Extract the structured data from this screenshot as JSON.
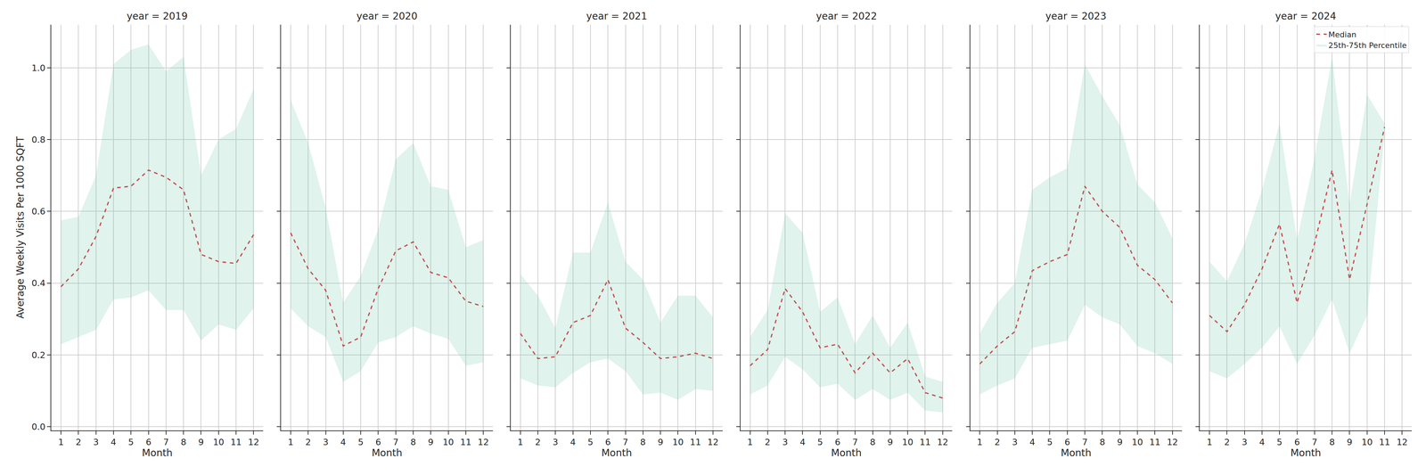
{
  "chart_data": [
    {
      "type": "line",
      "title": "year = 2019",
      "x_label": "Month",
      "y_label": "Average Weekly Visits Per 1000 SQFT",
      "x": [
        1,
        2,
        3,
        4,
        5,
        6,
        7,
        8,
        9,
        10,
        11,
        12
      ],
      "xlim": [
        0.45,
        12.55
      ],
      "xticks": [
        1,
        2,
        3,
        4,
        5,
        6,
        7,
        8,
        9,
        10,
        11,
        12
      ],
      "ylim": [
        -0.01,
        1.12
      ],
      "yticks": [
        {
          "value": 0,
          "label": "0.0"
        },
        0.2,
        0.4,
        0.6,
        0.8,
        {
          "value": 1,
          "label": "1.0"
        }
      ],
      "grid": true,
      "series": [
        {
          "name": "25th-75th Percentile",
          "type": "area",
          "color": "#66c2a5",
          "lower": [
            0.23,
            0.25,
            0.27,
            0.355,
            0.36,
            0.38,
            0.325,
            0.325,
            0.24,
            0.285,
            0.27,
            0.33
          ],
          "upper": [
            0.575,
            0.585,
            0.7,
            1.01,
            1.05,
            1.065,
            0.99,
            1.03,
            0.7,
            0.8,
            0.83,
            0.94
          ]
        },
        {
          "name": "Median",
          "type": "line",
          "color": "#c44e52",
          "line_style": "dashed",
          "values": [
            0.39,
            0.44,
            0.53,
            0.665,
            0.67,
            0.715,
            0.695,
            0.66,
            0.48,
            0.46,
            0.455,
            0.535
          ]
        }
      ]
    },
    {
      "type": "line",
      "title": "year = 2020",
      "x_label": "Month",
      "tick_labels": "x",
      "x": [
        1,
        2,
        3,
        4,
        5,
        6,
        7,
        8,
        9,
        10,
        11,
        12
      ],
      "xlim": [
        0.45,
        12.55
      ],
      "xticks": [
        1,
        2,
        3,
        4,
        5,
        6,
        7,
        8,
        9,
        10,
        11,
        12
      ],
      "ylim": [
        -0.01,
        1.12
      ],
      "yticks": [
        {
          "value": 0,
          "label": "0.0"
        },
        0.2,
        0.4,
        0.6,
        0.8,
        {
          "value": 1,
          "label": "1.0"
        }
      ],
      "grid": true,
      "series": [
        {
          "name": "25th-75th Percentile",
          "type": "area",
          "color": "#66c2a5",
          "lower": [
            0.33,
            0.28,
            0.25,
            0.125,
            0.155,
            0.235,
            0.25,
            0.28,
            0.26,
            0.245,
            0.17,
            0.18
          ],
          "upper": [
            0.91,
            0.79,
            0.61,
            0.345,
            0.42,
            0.55,
            0.745,
            0.79,
            0.67,
            0.66,
            0.5,
            0.52
          ]
        },
        {
          "name": "Median",
          "type": "line",
          "color": "#c44e52",
          "line_style": "dashed",
          "values": [
            0.54,
            0.44,
            0.38,
            0.225,
            0.25,
            0.385,
            0.49,
            0.515,
            0.43,
            0.415,
            0.35,
            0.335
          ]
        }
      ]
    },
    {
      "type": "line",
      "title": "year = 2021",
      "x_label": "Month",
      "tick_labels": "x",
      "x": [
        1,
        2,
        3,
        4,
        5,
        6,
        7,
        8,
        9,
        10,
        11,
        12
      ],
      "xlim": [
        0.45,
        12.55
      ],
      "xticks": [
        1,
        2,
        3,
        4,
        5,
        6,
        7,
        8,
        9,
        10,
        11,
        12
      ],
      "ylim": [
        -0.01,
        1.12
      ],
      "yticks": [
        {
          "value": 0,
          "label": "0.0"
        },
        0.2,
        0.4,
        0.6,
        0.8,
        {
          "value": 1,
          "label": "1.0"
        }
      ],
      "grid": true,
      "series": [
        {
          "name": "25th-75th Percentile",
          "type": "area",
          "color": "#66c2a5",
          "lower": [
            0.135,
            0.115,
            0.11,
            0.15,
            0.18,
            0.19,
            0.155,
            0.09,
            0.095,
            0.075,
            0.105,
            0.1
          ],
          "upper": [
            0.425,
            0.365,
            0.275,
            0.485,
            0.485,
            0.625,
            0.46,
            0.41,
            0.29,
            0.365,
            0.365,
            0.305
          ]
        },
        {
          "name": "Median",
          "type": "line",
          "color": "#c44e52",
          "line_style": "dashed",
          "values": [
            0.26,
            0.19,
            0.195,
            0.29,
            0.31,
            0.41,
            0.275,
            0.235,
            0.19,
            0.195,
            0.205,
            0.19
          ]
        }
      ]
    },
    {
      "type": "line",
      "title": "year = 2022",
      "x_label": "Month",
      "tick_labels": "x",
      "x": [
        1,
        2,
        3,
        4,
        5,
        6,
        7,
        8,
        9,
        10,
        11,
        12
      ],
      "xlim": [
        0.45,
        12.55
      ],
      "xticks": [
        1,
        2,
        3,
        4,
        5,
        6,
        7,
        8,
        9,
        10,
        11,
        12
      ],
      "ylim": [
        -0.01,
        1.12
      ],
      "yticks": [
        {
          "value": 0,
          "label": "0.0"
        },
        0.2,
        0.4,
        0.6,
        0.8,
        {
          "value": 1,
          "label": "1.0"
        }
      ],
      "grid": true,
      "series": [
        {
          "name": "25th-75th Percentile",
          "type": "area",
          "color": "#66c2a5",
          "lower": [
            0.09,
            0.115,
            0.195,
            0.16,
            0.11,
            0.12,
            0.075,
            0.105,
            0.075,
            0.095,
            0.045,
            0.04
          ],
          "upper": [
            0.25,
            0.325,
            0.595,
            0.54,
            0.32,
            0.36,
            0.23,
            0.31,
            0.22,
            0.29,
            0.14,
            0.125
          ]
        },
        {
          "name": "Median",
          "type": "line",
          "color": "#c44e52",
          "line_style": "dashed",
          "values": [
            0.17,
            0.215,
            0.385,
            0.32,
            0.22,
            0.23,
            0.15,
            0.205,
            0.15,
            0.19,
            0.095,
            0.08
          ]
        }
      ]
    },
    {
      "type": "line",
      "title": "year = 2023",
      "x_label": "Month",
      "tick_labels": "x",
      "x": [
        1,
        2,
        3,
        4,
        5,
        6,
        7,
        8,
        9,
        10,
        11,
        12
      ],
      "xlim": [
        0.45,
        12.55
      ],
      "xticks": [
        1,
        2,
        3,
        4,
        5,
        6,
        7,
        8,
        9,
        10,
        11,
        12
      ],
      "ylim": [
        -0.01,
        1.12
      ],
      "yticks": [
        {
          "value": 0,
          "label": "0.0"
        },
        0.2,
        0.4,
        0.6,
        0.8,
        {
          "value": 1,
          "label": "1.0"
        }
      ],
      "grid": true,
      "series": [
        {
          "name": "25th-75th Percentile",
          "type": "area",
          "color": "#66c2a5",
          "lower": [
            0.09,
            0.115,
            0.135,
            0.22,
            0.23,
            0.24,
            0.34,
            0.305,
            0.285,
            0.225,
            0.205,
            0.175
          ],
          "upper": [
            0.26,
            0.345,
            0.4,
            0.66,
            0.695,
            0.72,
            1.01,
            0.92,
            0.84,
            0.675,
            0.625,
            0.525
          ]
        },
        {
          "name": "Median",
          "type": "line",
          "color": "#c44e52",
          "line_style": "dashed",
          "values": [
            0.175,
            0.225,
            0.265,
            0.435,
            0.46,
            0.48,
            0.67,
            0.6,
            0.555,
            0.45,
            0.41,
            0.345
          ]
        }
      ]
    },
    {
      "type": "line",
      "title": "year = 2024",
      "x_label": "Month",
      "tick_labels": "x",
      "legend": "upper right",
      "x": [
        1,
        2,
        3,
        4,
        5,
        6,
        7,
        8,
        9,
        10,
        11
      ],
      "xlim": [
        0.45,
        12.55
      ],
      "xticks": [
        1,
        2,
        3,
        4,
        5,
        6,
        7,
        8,
        9,
        10,
        11,
        12
      ],
      "ylim": [
        -0.01,
        1.12
      ],
      "yticks": [
        {
          "value": 0,
          "label": "0.0"
        },
        0.2,
        0.4,
        0.6,
        0.8,
        {
          "value": 1,
          "label": "1.0"
        }
      ],
      "grid": true,
      "series": [
        {
          "name": "25th-75th Percentile",
          "type": "area",
          "color": "#66c2a5",
          "lower": [
            0.155,
            0.135,
            0.175,
            0.22,
            0.28,
            0.175,
            0.255,
            0.355,
            0.205,
            0.31,
            0.82
          ],
          "upper": [
            0.46,
            0.405,
            0.51,
            0.66,
            0.845,
            0.52,
            0.75,
            1.03,
            0.62,
            0.925,
            0.845
          ]
        },
        {
          "name": "Median",
          "type": "line",
          "color": "#c44e52",
          "line_style": "dashed",
          "values": [
            0.31,
            0.265,
            0.34,
            0.44,
            0.565,
            0.345,
            0.51,
            0.715,
            0.41,
            0.62,
            0.835
          ]
        }
      ]
    }
  ]
}
